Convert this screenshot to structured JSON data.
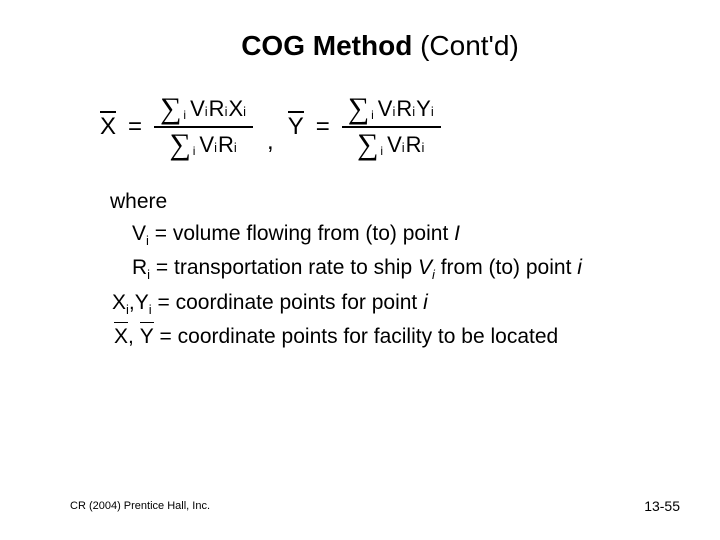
{
  "title": {
    "bold": "COG Method",
    "normal": " (Cont'd)"
  },
  "formula": {
    "x_label": "X",
    "y_label": "Y",
    "equals": "=",
    "comma": ",",
    "sigma": "∑",
    "sub_i": "i",
    "num_x_terms": [
      "V",
      "R",
      "X"
    ],
    "den_terms": [
      "V",
      "R"
    ],
    "num_y_terms": [
      "V",
      "R",
      "Y"
    ]
  },
  "where": {
    "heading": "where",
    "lines": [
      {
        "sym": "V",
        "sub": "i",
        "def": " = volume flowing from (to) point ",
        "tail_italic": "I"
      },
      {
        "sym": "R",
        "sub": "i",
        "def": " = transportation rate to ship ",
        "mid_italic": "V",
        "mid_sub": "i",
        "def2": " from (to) point ",
        "tail_italic": "i"
      },
      {
        "sym2": "X",
        "sub2a": "i",
        "sep": ",",
        "sym2b": "Y",
        "sub2b": "i",
        "def": " = coordinate points for point ",
        "tail_italic": "i"
      },
      {
        "bar1": "X",
        "sep": ", ",
        "bar2": "Y",
        "def": "  = coordinate points for facility to be located"
      }
    ]
  },
  "footer": {
    "left": "CR (2004) Prentice Hall, Inc.",
    "right": "13-55"
  }
}
